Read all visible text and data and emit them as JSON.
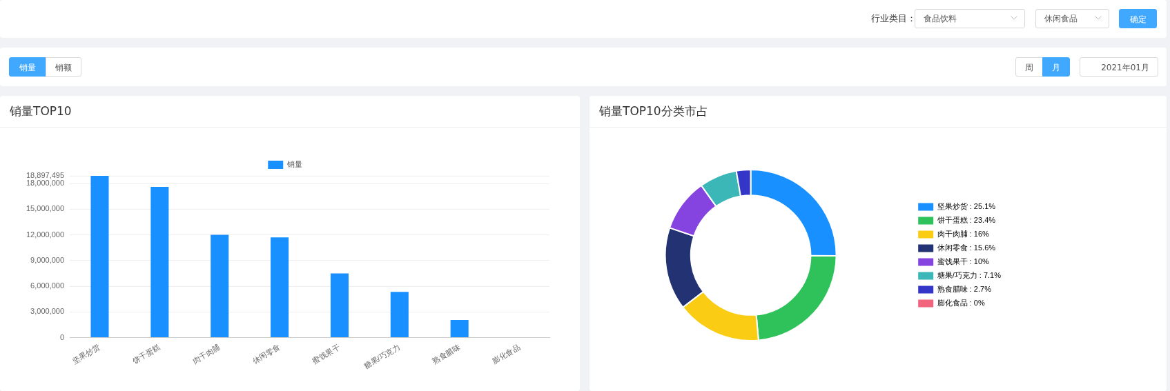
{
  "chart_data": [
    {
      "type": "other",
      "annotations": [
        "行业类目：",
        "食品饮料",
        "休闲食品",
        "确定",
        "销量",
        "销额",
        "周",
        "月",
        "2021年01月"
      ]
    },
    {
      "type": "bar",
      "title": "销量TOP10",
      "categories": [
        "坚果炒货",
        "饼干蛋糕",
        "肉干肉脯",
        "休闲零食",
        "蜜饯果干",
        "糖果/巧克力",
        "熟食腊味",
        "膨化食品"
      ],
      "series": [
        {
          "name": "销量",
          "color": "#1890ff",
          "values": [
            18897495,
            17600000,
            12000000,
            11700000,
            7500000,
            5350000,
            2050000,
            0
          ]
        }
      ],
      "ylim": [
        0,
        18897495
      ],
      "yticks": [
        {
          "value": 0,
          "label": "0"
        },
        {
          "value": 3000000,
          "label": "3,000,000"
        },
        {
          "value": 6000000,
          "label": "6,000,000"
        },
        {
          "value": 9000000,
          "label": "9,000,000"
        },
        {
          "value": 12000000,
          "label": "12,000,000"
        },
        {
          "value": 15000000,
          "label": "15,000,000"
        },
        {
          "value": 18000000,
          "label": "18,000,000"
        },
        {
          "value": 18897495,
          "label": "18,897,495"
        }
      ],
      "grid": "y",
      "legend": "top"
    },
    {
      "type": "donut",
      "title": "销量TOP10分类市占",
      "categories": [
        "坚果炒货",
        "饼干蛋糕",
        "肉干肉脯",
        "休闲零食",
        "蜜饯果干",
        "糖果/巧克力",
        "熟食腊味",
        "膨化食品"
      ],
      "values": [
        25.1,
        23.4,
        16,
        15.6,
        10,
        7.1,
        2.7,
        0
      ],
      "value_labels": [
        "25.1%",
        "23.4%",
        "16%",
        "15.6%",
        "10%",
        "7.1%",
        "2.7%",
        "0%"
      ],
      "colors": [
        "#1890ff",
        "#2fc25b",
        "#facc14",
        "#223273",
        "#8543e0",
        "#3cb7b7",
        "#3436c7",
        "#f0657d"
      ],
      "legend": "right"
    }
  ]
}
